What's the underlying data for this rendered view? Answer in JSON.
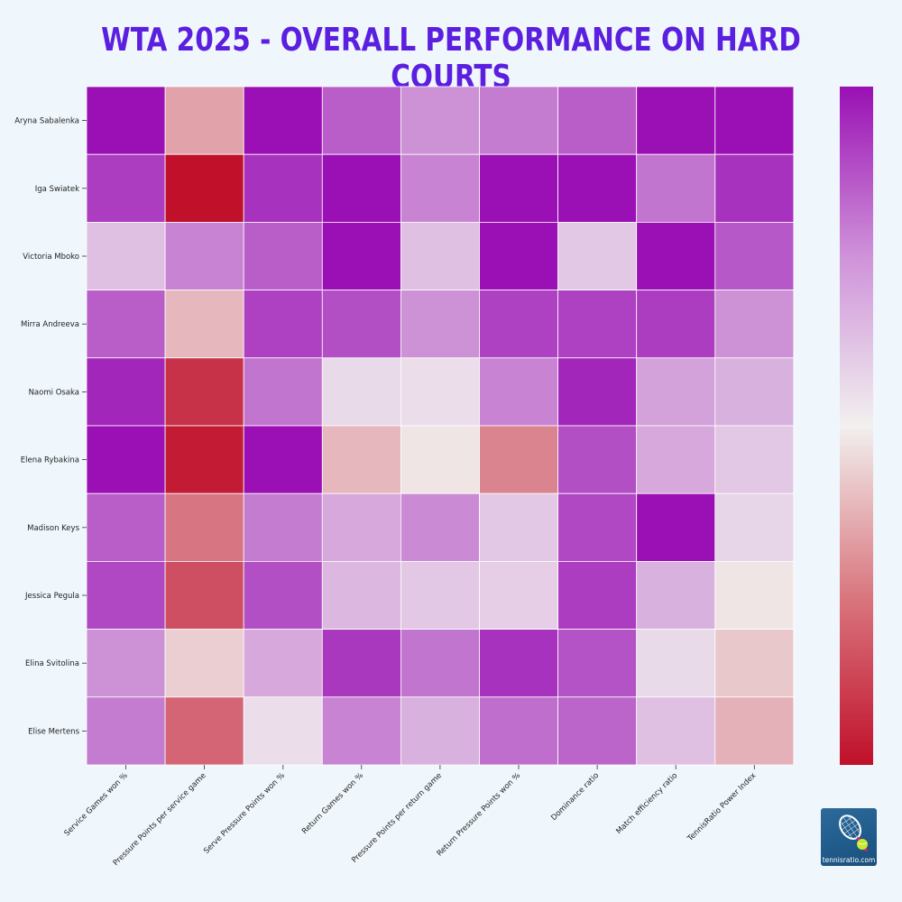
{
  "header": {
    "title": "WTA 2025 - OVERALL PERFORMANCE ON HARD COURTS"
  },
  "logo": {
    "text": "tennisratio.com"
  },
  "colors": {
    "title": "#5b1fe0",
    "background": "#f0f7fc",
    "scale_low": "#c0102a",
    "scale_mid": "#f2f0ef",
    "scale_high": "#9a10b4"
  },
  "chart_data": {
    "type": "heatmap",
    "title": "WTA 2025 - OVERALL PERFORMANCE ON HARD COURTS",
    "rows": [
      "Aryna Sabalenka",
      "Iga Swiatek",
      "Victoria Mboko",
      "Mirra Andreeva",
      "Naomi Osaka",
      "Elena Rybakina",
      "Madison Keys",
      "Jessica Pegula",
      "Elina Svitolina",
      "Elise Mertens"
    ],
    "columns": [
      "Service Games won %",
      "Pressure Points per service game",
      "Serve Pressure Points won %",
      "Return Games won %",
      "Pressure Points per return game",
      "Return Pressure Points won %",
      "Dominance ratio",
      "Match efficiency ratio",
      "TennisRatio Power Index"
    ],
    "values": [
      [
        1.0,
        -0.35,
        1.0,
        0.65,
        0.42,
        0.52,
        0.65,
        1.0,
        1.0
      ],
      [
        0.8,
        -1.0,
        0.85,
        1.0,
        0.48,
        1.0,
        1.0,
        0.55,
        0.85
      ],
      [
        0.22,
        0.48,
        0.65,
        1.0,
        0.22,
        1.0,
        0.18,
        1.0,
        0.68
      ],
      [
        0.65,
        -0.25,
        0.78,
        0.72,
        0.42,
        0.78,
        0.78,
        0.8,
        0.42
      ],
      [
        0.9,
        -0.85,
        0.55,
        0.1,
        0.08,
        0.48,
        0.9,
        0.35,
        0.28
      ],
      [
        1.0,
        -0.95,
        1.0,
        -0.25,
        -0.05,
        -0.48,
        0.72,
        0.32,
        0.18
      ],
      [
        0.65,
        -0.55,
        0.52,
        0.32,
        0.45,
        0.18,
        0.75,
        1.0,
        0.12
      ],
      [
        0.75,
        -0.72,
        0.72,
        0.25,
        0.18,
        0.15,
        0.8,
        0.28,
        -0.05
      ],
      [
        0.42,
        -0.15,
        0.32,
        0.82,
        0.55,
        0.85,
        0.7,
        0.1,
        -0.18
      ],
      [
        0.52,
        -0.62,
        0.08,
        0.48,
        0.28,
        0.58,
        0.62,
        0.22,
        -0.28
      ]
    ],
    "colorbar": {
      "orientation": "vertical",
      "ticks": false
    },
    "grid": true,
    "legend": "none"
  }
}
